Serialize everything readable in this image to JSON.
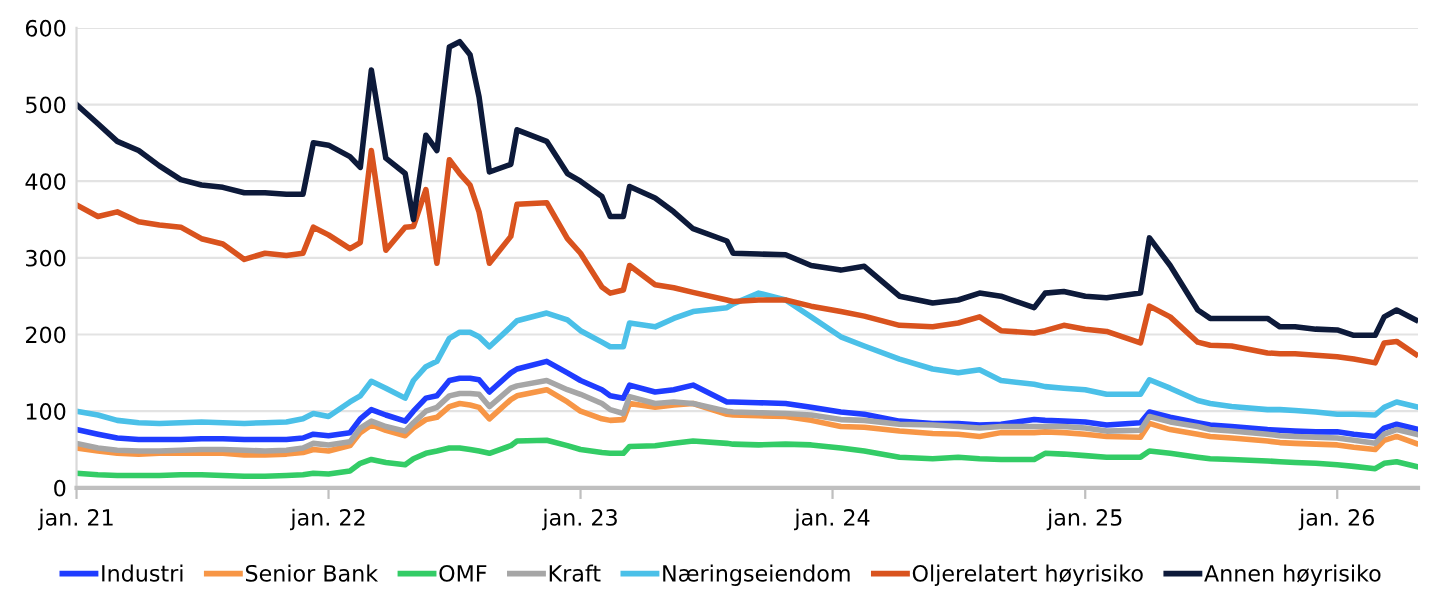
{
  "chart_data": {
    "type": "line",
    "x": [
      "2021-01-01",
      "2021-02-01",
      "2021-03-01",
      "2021-04-01",
      "2021-05-01",
      "2021-06-01",
      "2021-07-01",
      "2021-08-01",
      "2021-09-01",
      "2021-10-01",
      "2021-11-01",
      "2021-11-25",
      "2021-12-10",
      "2022-01-01",
      "2022-02-01",
      "2022-02-16",
      "2022-03-04",
      "2022-03-25",
      "2022-04-22",
      "2022-05-04",
      "2022-05-22",
      "2022-06-07",
      "2022-06-25",
      "2022-07-10",
      "2022-07-25",
      "2022-08-07",
      "2022-08-22",
      "2022-09-22",
      "2022-10-01",
      "2022-11-13",
      "2022-12-13",
      "2023-01-01",
      "2023-02-01",
      "2023-02-13",
      "2023-03-04",
      "2023-03-13",
      "2023-04-19",
      "2023-05-16",
      "2023-06-13",
      "2023-08-01",
      "2023-08-10",
      "2023-09-16",
      "2023-10-25",
      "2023-12-01",
      "2024-01-13",
      "2024-02-16",
      "2024-04-07",
      "2024-05-25",
      "2024-07-01",
      "2024-08-01",
      "2024-09-01",
      "2024-10-19",
      "2024-11-04",
      "2024-12-01",
      "2025-01-01",
      "2025-02-01",
      "2025-03-22",
      "2025-04-04",
      "2025-05-04",
      "2025-06-13",
      "2025-07-01",
      "2025-08-01",
      "2025-09-22",
      "2025-10-10",
      "2025-11-01",
      "2025-12-01",
      "2026-01-01",
      "2026-01-25",
      "2026-02-25",
      "2026-03-10",
      "2026-03-28",
      "2026-04-25"
    ],
    "series": [
      {
        "name": "Industri",
        "color": "#1f3cff",
        "values": [
          76,
          70,
          65,
          63,
          63,
          63,
          64,
          64,
          63,
          63,
          63,
          65,
          70,
          68,
          72,
          90,
          102,
          95,
          87,
          100,
          117,
          120,
          140,
          143,
          143,
          141,
          125,
          150,
          155,
          165,
          150,
          140,
          128,
          120,
          117,
          134,
          125,
          128,
          134,
          112,
          112,
          111,
          110,
          105,
          99,
          96,
          87,
          84,
          84,
          82,
          83,
          89,
          88,
          87,
          86,
          82,
          85,
          99,
          92,
          85,
          82,
          80,
          76,
          75,
          74,
          73,
          73,
          70,
          67,
          78,
          83,
          77
        ]
      },
      {
        "name": "Senior Bank",
        "color": "#f79646",
        "values": [
          52,
          48,
          45,
          44,
          45,
          45,
          45,
          45,
          43,
          43,
          44,
          46,
          50,
          48,
          55,
          72,
          82,
          75,
          68,
          78,
          89,
          92,
          106,
          110,
          108,
          105,
          90,
          115,
          120,
          128,
          112,
          100,
          90,
          88,
          89,
          110,
          105,
          108,
          110,
          96,
          95,
          94,
          93,
          88,
          80,
          79,
          74,
          71,
          70,
          67,
          72,
          72,
          73,
          72,
          70,
          67,
          66,
          84,
          76,
          70,
          67,
          65,
          61,
          59,
          58,
          57,
          56,
          53,
          50,
          62,
          67,
          58
        ]
      },
      {
        "name": "OMF",
        "color": "#33cc66",
        "values": [
          19,
          17,
          16,
          16,
          16,
          17,
          17,
          16,
          15,
          15,
          16,
          17,
          19,
          18,
          22,
          32,
          37,
          33,
          30,
          38,
          45,
          48,
          52,
          52,
          50,
          48,
          45,
          55,
          61,
          62,
          55,
          50,
          46,
          45,
          45,
          54,
          55,
          58,
          61,
          58,
          57,
          56,
          57,
          56,
          52,
          48,
          40,
          38,
          40,
          38,
          37,
          37,
          45,
          44,
          42,
          40,
          40,
          48,
          45,
          40,
          38,
          37,
          35,
          34,
          33,
          32,
          30,
          28,
          25,
          32,
          34,
          28
        ]
      },
      {
        "name": "Kraft",
        "color": "#a6a6a6",
        "values": [
          58,
          52,
          49,
          48,
          48,
          49,
          50,
          50,
          49,
          48,
          49,
          52,
          58,
          56,
          60,
          78,
          87,
          80,
          74,
          85,
          100,
          105,
          120,
          123,
          123,
          122,
          106,
          130,
          133,
          140,
          128,
          122,
          110,
          102,
          97,
          119,
          110,
          112,
          110,
          100,
          99,
          98,
          97,
          95,
          89,
          88,
          83,
          82,
          80,
          78,
          80,
          80,
          80,
          80,
          78,
          74,
          75,
          93,
          86,
          80,
          76,
          74,
          70,
          68,
          67,
          66,
          65,
          62,
          58,
          70,
          76,
          70
        ]
      },
      {
        "name": "Næringseiendom",
        "color": "#4bc0e8",
        "values": [
          100,
          95,
          88,
          85,
          84,
          85,
          86,
          85,
          84,
          85,
          86,
          90,
          97,
          93,
          112,
          120,
          139,
          130,
          117,
          140,
          158,
          165,
          195,
          203,
          203,
          197,
          184,
          210,
          218,
          228,
          219,
          205,
          190,
          184,
          184,
          215,
          210,
          221,
          230,
          235,
          240,
          254,
          245,
          223,
          197,
          185,
          168,
          155,
          150,
          154,
          140,
          135,
          132,
          130,
          128,
          122,
          122,
          141,
          130,
          114,
          110,
          106,
          102,
          102,
          101,
          99,
          96,
          96,
          95,
          105,
          112,
          106
        ]
      },
      {
        "name": "Oljerelatert høyrisiko",
        "color": "#d9531e",
        "values": [
          369,
          354,
          360,
          347,
          343,
          340,
          325,
          318,
          298,
          306,
          303,
          306,
          340,
          330,
          312,
          320,
          440,
          310,
          340,
          341,
          389,
          293,
          428,
          410,
          395,
          360,
          293,
          328,
          370,
          372,
          325,
          306,
          262,
          254,
          258,
          290,
          265,
          261,
          255,
          245,
          243,
          245,
          245,
          237,
          230,
          224,
          212,
          210,
          215,
          223,
          205,
          202,
          205,
          212,
          207,
          204,
          189,
          237,
          223,
          190,
          186,
          185,
          176,
          175,
          175,
          173,
          171,
          168,
          163,
          189,
          191,
          174
        ]
      },
      {
        "name": "Annen høyrisiko",
        "color": "#0d1a3a",
        "values": [
          500,
          475,
          452,
          440,
          420,
          402,
          395,
          392,
          385,
          385,
          383,
          383,
          450,
          447,
          432,
          418,
          545,
          430,
          410,
          350,
          460,
          440,
          575,
          582,
          565,
          510,
          412,
          422,
          467,
          452,
          410,
          400,
          380,
          354,
          354,
          393,
          378,
          360,
          338,
          322,
          306,
          305,
          304,
          290,
          284,
          289,
          250,
          241,
          245,
          254,
          250,
          235,
          254,
          256,
          250,
          248,
          254,
          326,
          290,
          232,
          221,
          221,
          221,
          210,
          210,
          207,
          206,
          199,
          199,
          223,
          232,
          219
        ]
      }
    ],
    "xlim": [
      "2021-01-01",
      "2026-04-28"
    ],
    "xticks": [
      {
        "value": "2021-01-01",
        "label": "jan. 21"
      },
      {
        "value": "2022-01-01",
        "label": "jan. 22"
      },
      {
        "value": "2023-01-01",
        "label": "jan. 23"
      },
      {
        "value": "2024-01-01",
        "label": "jan. 24"
      },
      {
        "value": "2025-01-01",
        "label": "jan. 25"
      },
      {
        "value": "2026-01-01",
        "label": "jan. 26"
      }
    ],
    "ylim": [
      0,
      600
    ],
    "yticks": [
      0,
      100,
      200,
      300,
      400,
      500,
      600
    ],
    "grid": "y",
    "legend": "bottom",
    "marker": "none",
    "line_style": "solid"
  }
}
